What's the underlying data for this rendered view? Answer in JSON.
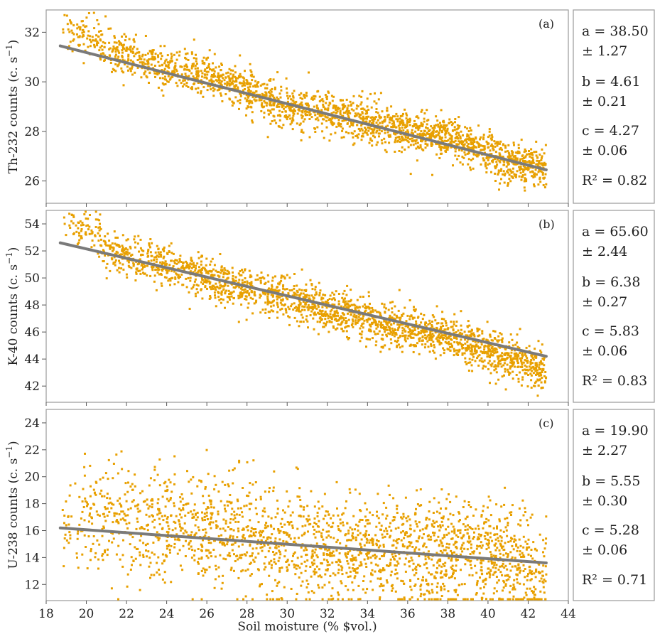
{
  "chart_data": [
    {
      "type": "scatter",
      "panel_label": "(a)",
      "ylabel": "Th-232 counts (c. s",
      "ylabel_sup": "−1",
      "ylabel_tail": ")",
      "xlim": [
        18,
        44
      ],
      "ylim": [
        25.1,
        32.9
      ],
      "yticks": [
        "26",
        "28",
        "30",
        "32"
      ],
      "ytick_values": [
        26,
        28,
        30,
        32
      ],
      "fit": {
        "x": [
          18.7,
          42.9
        ],
        "y": [
          31.45,
          26.45
        ]
      },
      "scatter": {
        "x_range": [
          18.8,
          42.9
        ],
        "anchors_x": [
          18.8,
          20.5,
          21.0,
          23.0,
          26.0,
          28.0,
          30.0,
          33.0,
          36.0,
          38.0,
          40.0,
          41.5,
          42.9
        ],
        "anchors_y": [
          32.0,
          31.8,
          31.2,
          30.8,
          30.3,
          29.7,
          29.0,
          28.6,
          28.0,
          27.8,
          27.1,
          26.7,
          26.6
        ],
        "spread": 0.9,
        "count": 2200
      },
      "stats": [
        "a = 38.50",
        "± 1.27",
        "b = 4.61",
        "± 0.21",
        "c = 4.27",
        "± 0.06",
        "R² = 0.82"
      ]
    },
    {
      "type": "scatter",
      "panel_label": "(b)",
      "ylabel": "K-40 counts (c. s",
      "ylabel_sup": "−1",
      "ylabel_tail": ")",
      "xlim": [
        18,
        44
      ],
      "ylim": [
        40.8,
        55.0
      ],
      "yticks": [
        "42",
        "44",
        "46",
        "48",
        "50",
        "52",
        "54"
      ],
      "ytick_values": [
        42,
        44,
        46,
        48,
        50,
        52,
        54
      ],
      "fit": {
        "x": [
          18.7,
          42.9
        ],
        "y": [
          52.6,
          44.2
        ]
      },
      "scatter": {
        "x_range": [
          18.8,
          42.9
        ],
        "anchors_x": [
          18.8,
          20.5,
          21.0,
          23.0,
          26.0,
          28.0,
          30.0,
          33.0,
          36.0,
          38.0,
          40.0,
          41.5,
          42.9
        ],
        "anchors_y": [
          53.8,
          53.6,
          52.0,
          51.2,
          50.0,
          49.0,
          48.6,
          47.2,
          46.2,
          45.6,
          44.6,
          43.8,
          43.0
        ],
        "spread": 1.7,
        "count": 2200
      },
      "stats": [
        "a = 65.60",
        "± 2.44",
        "b = 6.38",
        "± 0.27",
        "c = 5.83",
        "± 0.06",
        "R² = 0.83"
      ]
    },
    {
      "type": "scatter",
      "panel_label": "(c)",
      "ylabel": "U-238 counts (c. s",
      "ylabel_sup": "−1",
      "ylabel_tail": ")",
      "xlabel": "Soil moisture (% $vol.)",
      "xlim": [
        18,
        44
      ],
      "xticks": [
        "18",
        "20",
        "22",
        "24",
        "26",
        "28",
        "30",
        "32",
        "34",
        "36",
        "38",
        "40",
        "42",
        "44"
      ],
      "xtick_values": [
        18,
        20,
        22,
        24,
        26,
        28,
        30,
        32,
        34,
        36,
        38,
        40,
        42,
        44
      ],
      "ylim": [
        10.8,
        25.0
      ],
      "yticks": [
        "12",
        "14",
        "16",
        "18",
        "20",
        "22",
        "24"
      ],
      "ytick_values": [
        12,
        14,
        16,
        18,
        20,
        22,
        24
      ],
      "fit": {
        "x": [
          18.7,
          42.9
        ],
        "y": [
          16.2,
          13.6
        ]
      },
      "scatter": {
        "x_range": [
          18.8,
          42.9
        ],
        "anchors_x": [
          18.8,
          21.0,
          24.0,
          28.0,
          32.0,
          36.0,
          39.0,
          41.0,
          42.9
        ],
        "anchors_y": [
          16.5,
          16.8,
          16.4,
          15.6,
          14.8,
          14.4,
          14.2,
          13.8,
          12.5
        ],
        "spread": 4.5,
        "count": 2200
      },
      "stats": [
        "a = 19.90",
        "± 2.27",
        "b = 5.55",
        "± 0.30",
        "c = 5.28",
        "± 0.06",
        "R² = 0.71"
      ]
    }
  ],
  "colors": {
    "points": "#E8A000",
    "fit_line": "#7A7A7A",
    "frame": "#9A9A9A",
    "text": "#222222"
  }
}
